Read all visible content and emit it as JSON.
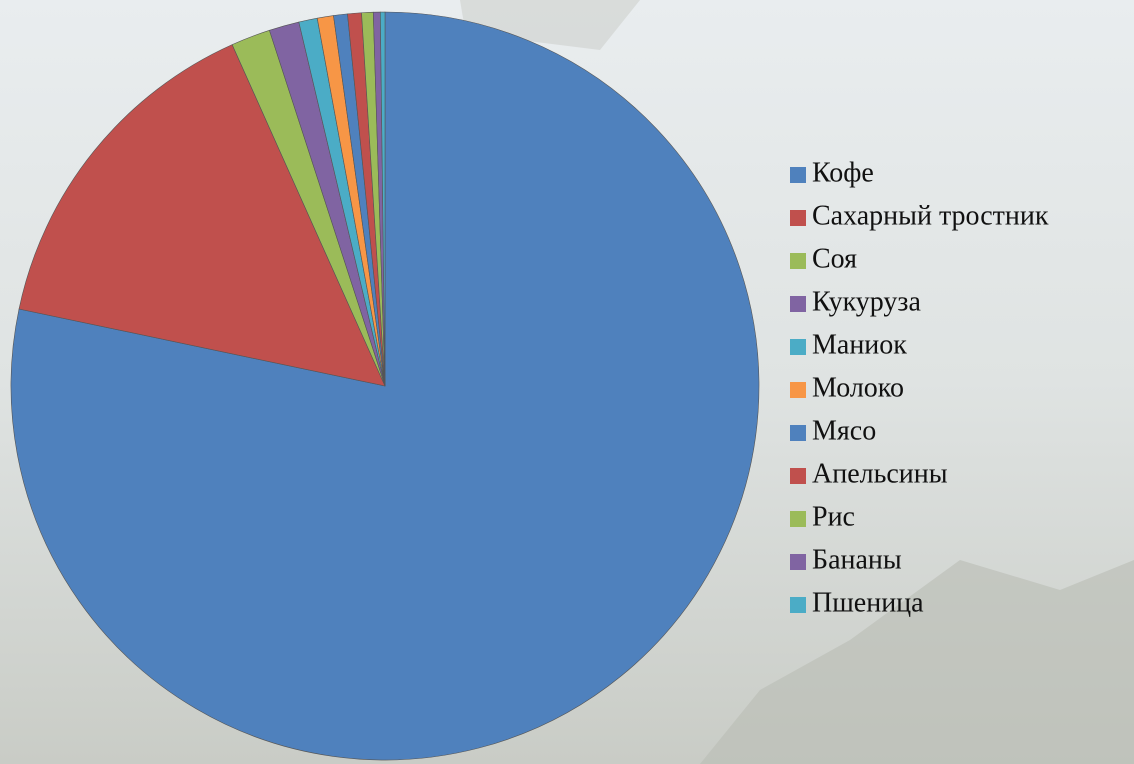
{
  "chart_data": {
    "type": "pie",
    "categories": [
      "Кофе",
      "Сахарный тростник",
      "Соя",
      "Кукуруза",
      "Маниок",
      "Молоко",
      "Мясо",
      "Апельсины",
      "Рис",
      "Бананы",
      "Пшеница"
    ],
    "values": [
      78.3,
      15,
      1.7,
      1.3,
      0.8,
      0.7,
      0.6,
      0.6,
      0.5,
      0.3,
      0.2
    ],
    "colors": [
      "#4f81bd",
      "#c0504d",
      "#9bbb59",
      "#8064a2",
      "#4bacc6",
      "#f79646",
      "#4f81bd",
      "#c0504d",
      "#9bbb59",
      "#8064a2",
      "#4bacc6"
    ],
    "legend": "right"
  }
}
